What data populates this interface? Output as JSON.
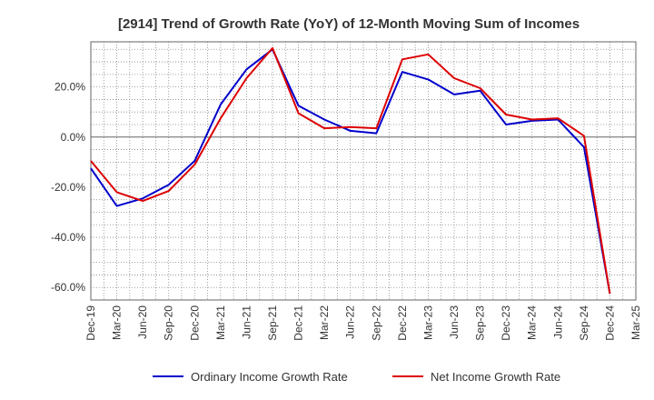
{
  "chart_data": {
    "type": "line",
    "title": "[2914]  Trend of Growth Rate (YoY) of 12-Month Moving Sum of Incomes",
    "xlabel": "",
    "ylabel": "",
    "x": [
      "Dec-19",
      "Mar-20",
      "Jun-20",
      "Sep-20",
      "Dec-20",
      "Mar-21",
      "Jun-21",
      "Sep-21",
      "Dec-21",
      "Mar-22",
      "Jun-22",
      "Sep-22",
      "Dec-22",
      "Mar-23",
      "Jun-23",
      "Sep-23",
      "Dec-23",
      "Mar-24",
      "Jun-24",
      "Sep-24",
      "Dec-24",
      "Mar-25"
    ],
    "ylim": [
      -65,
      38
    ],
    "yticks": [
      -60,
      -40,
      -20,
      0,
      20
    ],
    "ytick_labels": [
      "-60.0%",
      "-40.0%",
      "-20.0%",
      "0.0%",
      "20.0%"
    ],
    "grid": true,
    "legend_position": "bottom",
    "series": [
      {
        "name": "Ordinary Income Growth Rate",
        "color": "#0000cc",
        "values": [
          -12.5,
          -27.5,
          -24.5,
          -19.0,
          -9.5,
          13.0,
          27.0,
          35.0,
          12.5,
          7.0,
          2.5,
          1.5,
          26.0,
          23.0,
          17.0,
          18.5,
          5.0,
          6.5,
          7.0,
          -4.0,
          -62.5,
          null
        ]
      },
      {
        "name": "Net Income Growth Rate",
        "color": "#dd0000",
        "values": [
          -9.5,
          -22.0,
          -25.5,
          -21.5,
          -11.0,
          7.5,
          23.5,
          35.5,
          9.5,
          3.5,
          4.0,
          3.5,
          31.0,
          33.0,
          23.5,
          19.5,
          9.0,
          7.0,
          7.5,
          0.5,
          -62.5,
          null
        ]
      }
    ]
  }
}
